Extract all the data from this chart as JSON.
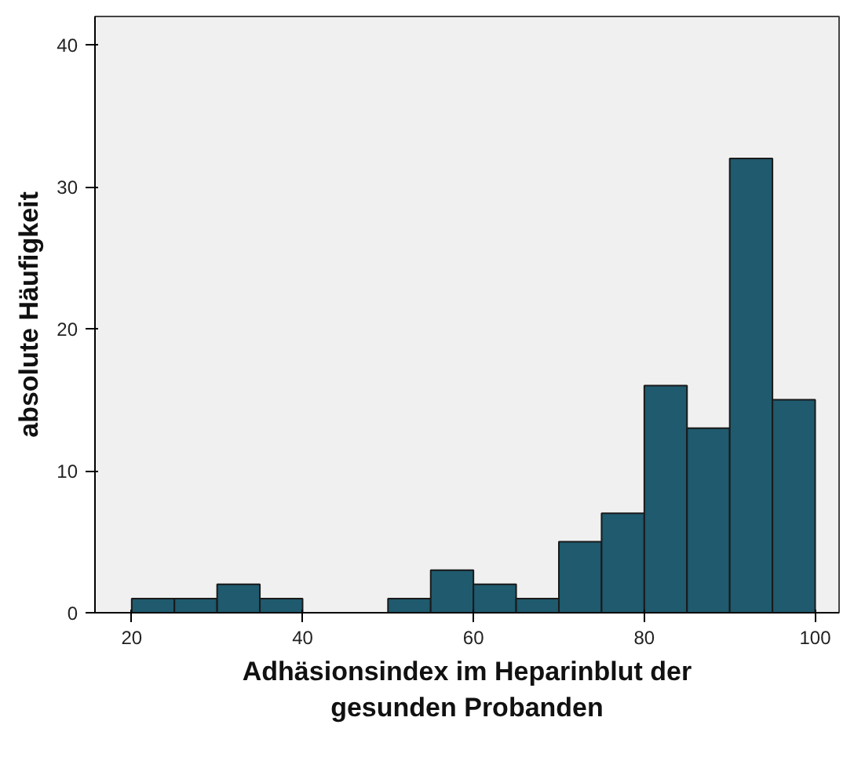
{
  "chart_data": {
    "type": "histogram",
    "xlabel": "Adhäsionsindex im Heparinblut der gesunden Probanden",
    "ylabel": "absolute Häufigkeit",
    "bins": [
      20,
      25,
      30,
      35,
      40,
      45,
      50,
      55,
      60,
      65,
      70,
      75,
      80,
      85,
      90,
      95,
      100
    ],
    "values": [
      1,
      1,
      2,
      1,
      0,
      0,
      1,
      3,
      2,
      1,
      5,
      7,
      16,
      13,
      32,
      15
    ],
    "color": "#1f5a6e",
    "xlim": [
      15.7,
      102.8
    ],
    "ylim": [
      0,
      42
    ],
    "xticks": [
      20,
      40,
      60,
      80,
      100
    ],
    "yticks": [
      0,
      10,
      20,
      30,
      40
    ],
    "grid": false
  }
}
